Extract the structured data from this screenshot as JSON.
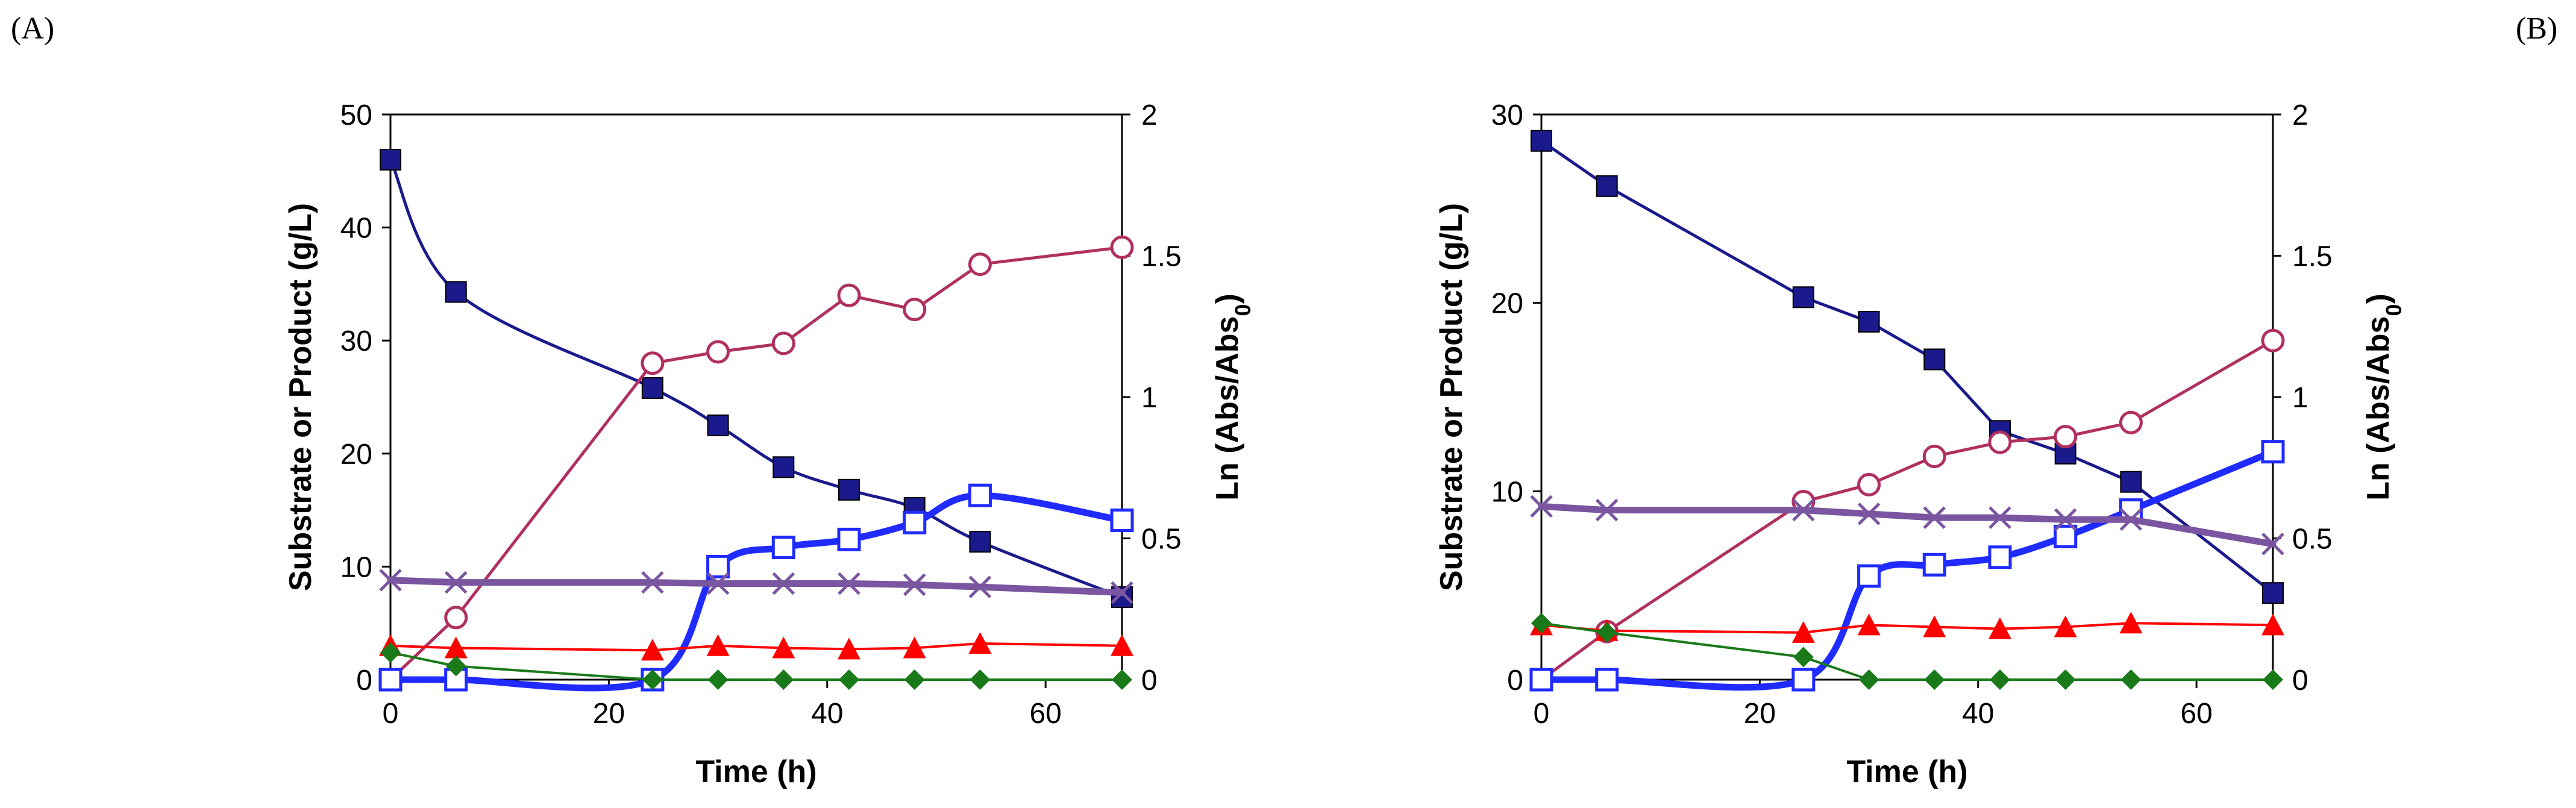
{
  "panels": {
    "a": {
      "label": "(A)"
    },
    "b": {
      "label": "(B)"
    }
  },
  "chart_data": [
    {
      "type": "line",
      "panel": "(A)",
      "xlabel": "Time (h)",
      "ylabel_left": "Substrate or Product (g/L)",
      "ylabel_right_main": "Ln (Abs/Abs",
      "ylabel_right_sub": "0",
      "ylabel_right_end": ")",
      "xlim": [
        0,
        67
      ],
      "ylim_left": [
        0,
        50
      ],
      "ylim_right": [
        0,
        2
      ],
      "x_ticks": [
        0,
        20,
        40,
        60
      ],
      "y_ticks_left": [
        0,
        10,
        20,
        30,
        40,
        50
      ],
      "y_ticks_right": [
        0,
        0.5,
        1,
        1.5,
        2
      ],
      "y_tick_labels_right": [
        "0",
        "0.5",
        "1",
        "1.5",
        "2"
      ],
      "series": [
        {
          "name": "filled-square",
          "marker": "square-filled",
          "color": "#1a1a8c",
          "width": 5,
          "smooth": true,
          "axis": "left",
          "x": [
            0,
            6,
            24,
            30,
            36,
            42,
            48,
            54,
            67
          ],
          "y": [
            46,
            34.3,
            25.8,
            22.5,
            18.8,
            16.8,
            15.2,
            12.2,
            7.3
          ]
        },
        {
          "name": "open-circle",
          "marker": "circle-open",
          "color": "#b03060",
          "width": 5,
          "smooth": false,
          "axis": "right",
          "x": [
            0,
            6,
            24,
            30,
            36,
            42,
            48,
            54,
            67
          ],
          "y": [
            0,
            0.22,
            1.12,
            1.16,
            1.19,
            1.36,
            1.31,
            1.47,
            1.53
          ]
        },
        {
          "name": "open-square",
          "marker": "square-open",
          "color": "#1f2bff",
          "width": 11,
          "smooth": true,
          "axis": "left",
          "x": [
            0,
            6,
            24,
            30,
            36,
            42,
            48,
            54,
            67
          ],
          "y": [
            0,
            0,
            0,
            10,
            11.7,
            12.4,
            13.9,
            16.3,
            14.1
          ]
        },
        {
          "name": "cross",
          "marker": "cross",
          "color": "#7a55a0",
          "width": 11,
          "smooth": false,
          "axis": "left",
          "x": [
            0,
            6,
            24,
            30,
            36,
            42,
            48,
            54,
            67
          ],
          "y": [
            8.8,
            8.6,
            8.6,
            8.5,
            8.5,
            8.5,
            8.4,
            8.2,
            7.7
          ]
        },
        {
          "name": "filled-triangle",
          "marker": "triangle-filled",
          "color": "#ff0000",
          "width": 4,
          "smooth": false,
          "axis": "left",
          "x": [
            0,
            6,
            24,
            30,
            36,
            42,
            48,
            54,
            67
          ],
          "y": [
            3.0,
            2.8,
            2.6,
            3.0,
            2.8,
            2.7,
            2.8,
            3.2,
            3.0
          ]
        },
        {
          "name": "filled-diamond",
          "marker": "diamond-filled",
          "color": "#1a7a1a",
          "width": 4,
          "smooth": false,
          "axis": "left",
          "x": [
            0,
            6,
            24,
            30,
            36,
            42,
            48,
            54,
            67
          ],
          "y": [
            2.4,
            1.2,
            0,
            0,
            0,
            0,
            0,
            0,
            0
          ]
        }
      ]
    },
    {
      "type": "line",
      "panel": "(B)",
      "xlabel": "Time (h)",
      "ylabel_left": "Substrate or Product (g/L)",
      "ylabel_right_main": "Ln (Abs/Abs",
      "ylabel_right_sub": "0",
      "ylabel_right_end": ")",
      "xlim": [
        0,
        67
      ],
      "ylim_left": [
        0,
        30
      ],
      "ylim_right": [
        0,
        2
      ],
      "x_ticks": [
        0,
        20,
        40,
        60
      ],
      "y_ticks_left": [
        0,
        10,
        20,
        30
      ],
      "y_ticks_right": [
        0,
        0.5,
        1,
        1.5,
        2
      ],
      "y_tick_labels_right": [
        "0",
        "0.5",
        "1",
        "1.5",
        "2"
      ],
      "series": [
        {
          "name": "filled-square",
          "marker": "square-filled",
          "color": "#1a1a8c",
          "width": 5,
          "smooth": false,
          "axis": "left",
          "x": [
            0,
            6,
            24,
            30,
            36,
            42,
            48,
            54,
            67
          ],
          "y": [
            28.6,
            26.2,
            20.3,
            19.0,
            17.0,
            13.2,
            12.0,
            10.5,
            4.6
          ]
        },
        {
          "name": "open-circle",
          "marker": "circle-open",
          "color": "#b03060",
          "width": 5,
          "smooth": false,
          "axis": "right",
          "x": [
            0,
            6,
            24,
            30,
            36,
            42,
            48,
            54,
            67
          ],
          "y": [
            0,
            0.17,
            0.63,
            0.69,
            0.79,
            0.84,
            0.86,
            0.91,
            1.2
          ]
        },
        {
          "name": "open-square",
          "marker": "square-open",
          "color": "#1f2bff",
          "width": 11,
          "smooth": true,
          "axis": "left",
          "x": [
            0,
            6,
            24,
            30,
            36,
            42,
            48,
            54,
            67
          ],
          "y": [
            0,
            0,
            0,
            5.5,
            6.1,
            6.5,
            7.6,
            9.0,
            12.1
          ]
        },
        {
          "name": "cross",
          "marker": "cross",
          "color": "#7a55a0",
          "width": 11,
          "smooth": false,
          "axis": "left",
          "x": [
            0,
            6,
            24,
            30,
            36,
            42,
            48,
            54,
            67
          ],
          "y": [
            9.2,
            9.0,
            9.0,
            8.8,
            8.6,
            8.6,
            8.5,
            8.5,
            7.2
          ]
        },
        {
          "name": "filled-triangle",
          "marker": "triangle-filled",
          "color": "#ff0000",
          "width": 4,
          "smooth": false,
          "axis": "left",
          "x": [
            0,
            6,
            24,
            30,
            36,
            42,
            48,
            54,
            67
          ],
          "y": [
            2.9,
            2.6,
            2.5,
            2.9,
            2.8,
            2.7,
            2.8,
            3.0,
            2.9
          ]
        },
        {
          "name": "filled-diamond",
          "marker": "diamond-filled",
          "color": "#1a7a1a",
          "width": 4,
          "smooth": false,
          "axis": "left",
          "x": [
            0,
            6,
            24,
            30,
            36,
            42,
            48,
            54,
            67
          ],
          "y": [
            3.0,
            2.5,
            1.2,
            0,
            0,
            0,
            0,
            0,
            0
          ]
        }
      ]
    }
  ]
}
